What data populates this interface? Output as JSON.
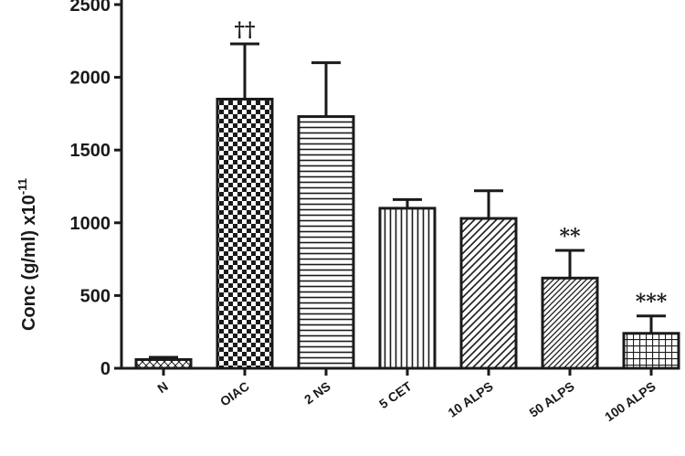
{
  "chart_data": {
    "type": "bar",
    "ylabel": "Conc (g/ml) x10",
    "ylabel_exponent": "-11",
    "ylim": [
      0,
      2500
    ],
    "yticks": [
      0,
      500,
      1000,
      1500,
      2000,
      2500
    ],
    "grid": false,
    "categories": [
      "N",
      "OIAC",
      "2 NS",
      "5 CET",
      "10 ALPS",
      "50 ALPS",
      "100 ALPS"
    ],
    "values": [
      60,
      1850,
      1730,
      1100,
      1030,
      620,
      240
    ],
    "error": [
      15,
      380,
      370,
      60,
      190,
      190,
      120
    ],
    "patterns": [
      "crosshatch-light",
      "checkerboard",
      "horizontal-lines",
      "vertical-lines",
      "diagonal-lines",
      "diagonal-lines-dense",
      "grid"
    ],
    "annotations": [
      "",
      "††",
      "",
      "",
      "",
      "**",
      "***"
    ],
    "colors": {
      "ink": "#1a1a1a",
      "background": "#ffffff"
    }
  }
}
